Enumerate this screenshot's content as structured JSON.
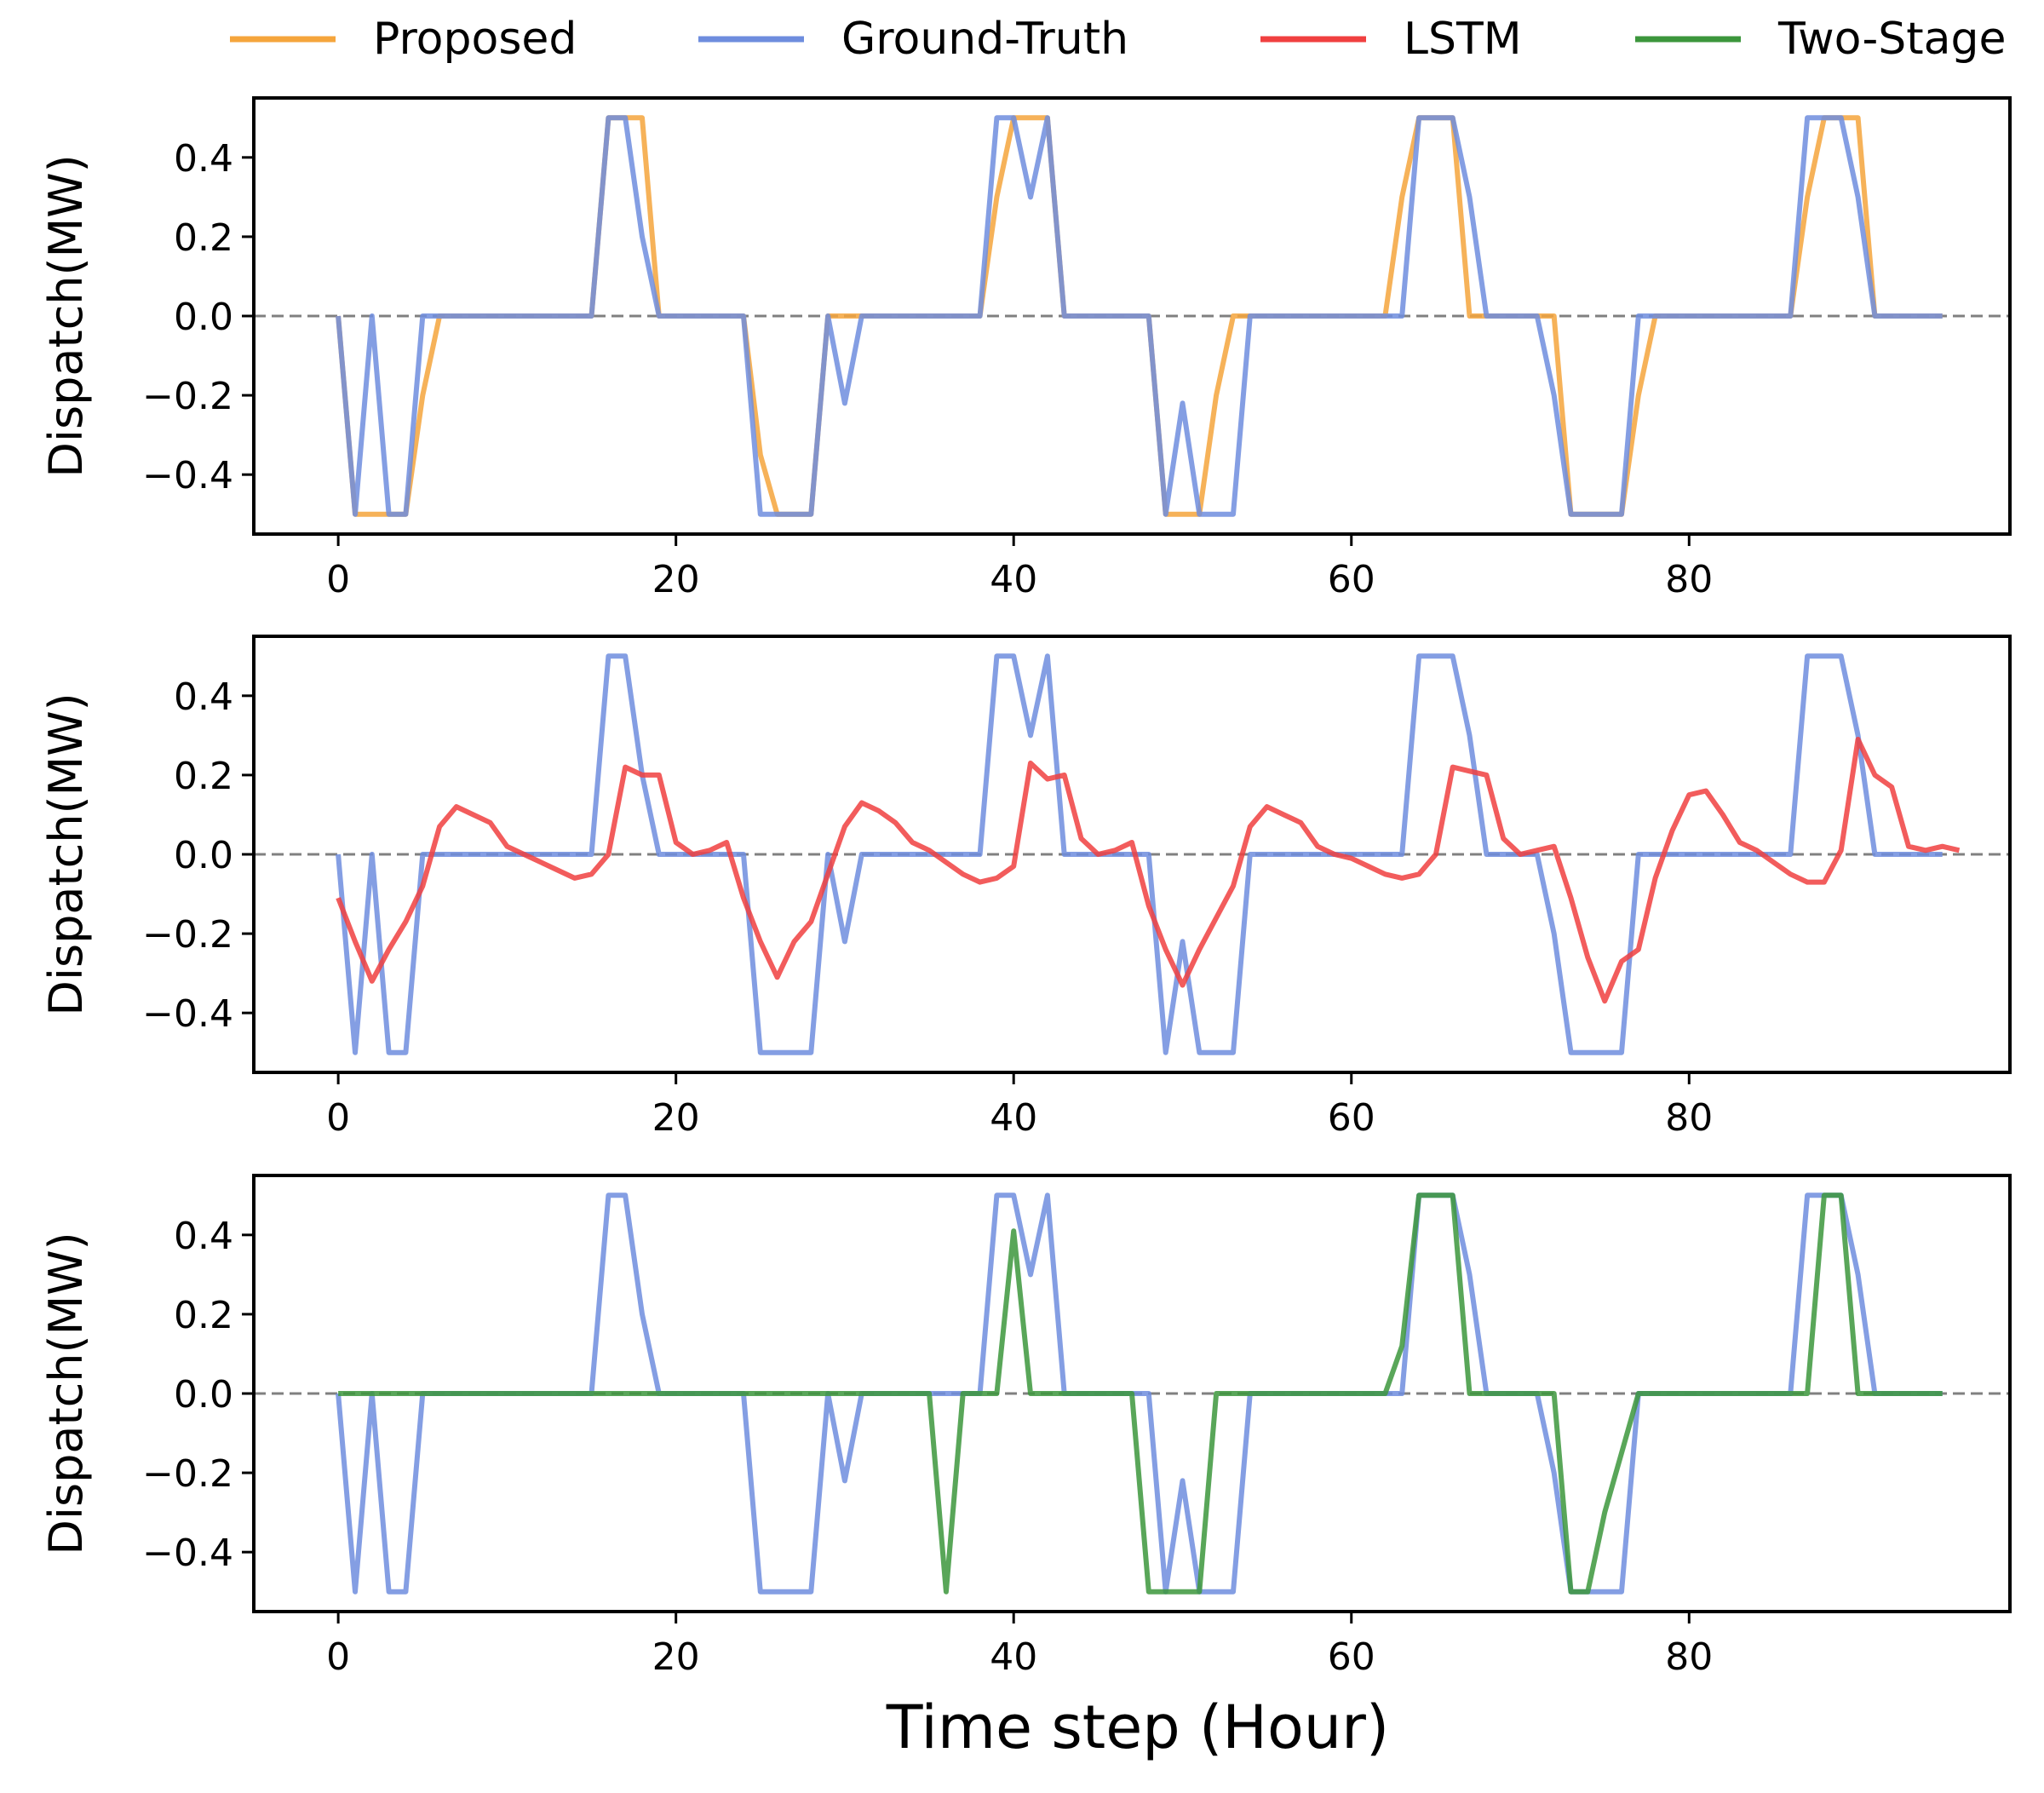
{
  "chart_data": {
    "type": "line",
    "legend": {
      "placement": "top",
      "entries": [
        {
          "name": "Proposed",
          "color": "#F5A53C"
        },
        {
          "name": "Ground-Truth",
          "color": "#6E8DDE"
        },
        {
          "name": "LSTM",
          "color": "#F04040"
        },
        {
          "name": "Two-Stage",
          "color": "#3C963C"
        }
      ]
    },
    "xlabel": "Time step (Hour)",
    "xlim": [
      -5,
      99
    ],
    "ylim": [
      -0.55,
      0.55
    ],
    "xticks": [
      0,
      20,
      40,
      60,
      80
    ],
    "yticks": [
      -0.4,
      -0.2,
      0.0,
      0.2,
      0.4
    ],
    "reference_line": {
      "y": 0,
      "style": "dashed",
      "color": "#808080"
    },
    "ground_truth": [
      0,
      -0.5,
      0,
      -0.5,
      -0.5,
      0,
      0,
      0,
      0,
      0,
      0,
      0,
      0,
      0,
      0,
      0,
      0.5,
      0.5,
      0.2,
      0,
      0,
      0,
      0,
      0,
      0,
      -0.5,
      -0.5,
      -0.5,
      -0.5,
      0,
      -0.22,
      0,
      0,
      0,
      0,
      0,
      0,
      0,
      0,
      0.5,
      0.5,
      0.3,
      0.5,
      0,
      0,
      0,
      0,
      0,
      0,
      -0.5,
      -0.22,
      -0.5,
      -0.5,
      -0.5,
      0,
      0,
      0,
      0,
      0,
      0,
      0,
      0,
      0,
      0,
      0.5,
      0.5,
      0.5,
      0.3,
      0,
      0,
      0,
      0,
      -0.2,
      -0.5,
      -0.5,
      -0.5,
      -0.5,
      0,
      0,
      0,
      0,
      0,
      0,
      0,
      0,
      0,
      0,
      0.5,
      0.5,
      0.5,
      0.3,
      0,
      0,
      0,
      0,
      0
    ],
    "panels": [
      {
        "ylabel": "Dispatch(MW)",
        "series": [
          {
            "name": "Proposed",
            "color": "#F5A53C",
            "values": [
              0,
              -0.5,
              -0.5,
              -0.5,
              -0.5,
              -0.2,
              0,
              0,
              0,
              0,
              0,
              0,
              0,
              0,
              0,
              0,
              0.5,
              0.5,
              0.5,
              0,
              0,
              0,
              0,
              0,
              0,
              -0.35,
              -0.5,
              -0.5,
              -0.5,
              0,
              0,
              0,
              0,
              0,
              0,
              0,
              0,
              0,
              0,
              0.3,
              0.5,
              0.5,
              0.5,
              0,
              0,
              0,
              0,
              0,
              0,
              -0.5,
              -0.5,
              -0.5,
              -0.2,
              0,
              0,
              0,
              0,
              0,
              0,
              0,
              0,
              0,
              0,
              0.3,
              0.5,
              0.5,
              0.5,
              0,
              0,
              0,
              0,
              0,
              0,
              -0.5,
              -0.5,
              -0.5,
              -0.5,
              -0.2,
              0,
              0,
              0,
              0,
              0,
              0,
              0,
              0,
              0,
              0.3,
              0.5,
              0.5,
              0.5,
              0,
              0,
              0,
              0,
              0
            ]
          },
          {
            "name": "Ground-Truth",
            "color": "#6E8DDE",
            "ref": "ground_truth"
          }
        ]
      },
      {
        "ylabel": "Dispatch(MW)",
        "series": [
          {
            "name": "Ground-Truth",
            "color": "#6E8DDE",
            "ref": "ground_truth"
          },
          {
            "name": "LSTM",
            "color": "#F04040",
            "values": [
              -0.11,
              -0.22,
              -0.32,
              -0.24,
              -0.17,
              -0.08,
              0.07,
              0.12,
              0.1,
              0.08,
              0.02,
              0,
              -0.02,
              -0.04,
              -0.06,
              -0.05,
              0,
              0.22,
              0.2,
              0.2,
              0.03,
              0,
              0.01,
              0.03,
              -0.11,
              -0.22,
              -0.31,
              -0.22,
              -0.17,
              -0.05,
              0.07,
              0.13,
              0.11,
              0.08,
              0.03,
              0.01,
              -0.02,
              -0.05,
              -0.07,
              -0.06,
              -0.03,
              0.23,
              0.19,
              0.2,
              0.04,
              0,
              0.01,
              0.03,
              -0.13,
              -0.24,
              -0.33,
              -0.24,
              -0.16,
              -0.08,
              0.07,
              0.12,
              0.1,
              0.08,
              0.02,
              0,
              -0.01,
              -0.03,
              -0.05,
              -0.06,
              -0.05,
              0,
              0.22,
              0.21,
              0.2,
              0.04,
              0,
              0.01,
              0.02,
              -0.11,
              -0.26,
              -0.37,
              -0.27,
              -0.24,
              -0.06,
              0.06,
              0.15,
              0.16,
              0.1,
              0.03,
              0.01,
              -0.02,
              -0.05,
              -0.07,
              -0.07,
              0.01,
              0.29,
              0.2,
              0.17,
              0.02,
              0.01,
              0.02,
              0.01
            ]
          }
        ]
      },
      {
        "ylabel": "Dispatch(MW)",
        "series": [
          {
            "name": "Ground-Truth",
            "color": "#6E8DDE",
            "ref": "ground_truth"
          },
          {
            "name": "Two-Stage",
            "color": "#3C963C",
            "values": [
              0,
              0,
              0,
              0,
              0,
              0,
              0,
              0,
              0,
              0,
              0,
              0,
              0,
              0,
              0,
              0,
              0,
              0,
              0,
              0,
              0,
              0,
              0,
              0,
              0,
              0,
              0,
              0,
              0,
              0,
              0,
              0,
              0,
              0,
              0,
              0,
              -0.5,
              0,
              0,
              0,
              0.41,
              0,
              0,
              0,
              0,
              0,
              0,
              0,
              -0.5,
              -0.5,
              -0.5,
              -0.5,
              0,
              0,
              0,
              0,
              0,
              0,
              0,
              0,
              0,
              0,
              0,
              0.12,
              0.5,
              0.5,
              0.5,
              0,
              0,
              0,
              0,
              0,
              0,
              -0.5,
              -0.5,
              -0.3,
              -0.15,
              0,
              0,
              0,
              0,
              0,
              0,
              0,
              0,
              0,
              0,
              0,
              0.5,
              0.5,
              0,
              0,
              0,
              0,
              0,
              0
            ]
          }
        ]
      }
    ]
  }
}
